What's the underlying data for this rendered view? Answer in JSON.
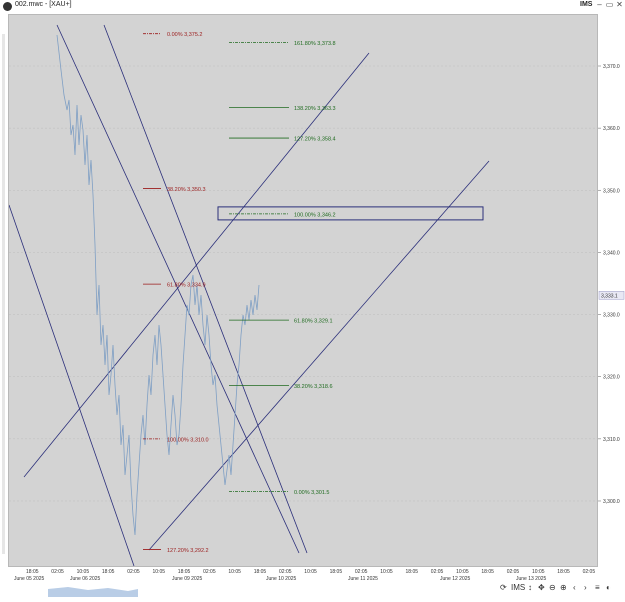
{
  "window": {
    "title": "002.mwc - [XAU+]",
    "brand": "IMS",
    "minimize": "–",
    "restore": "▭",
    "close": "✕"
  },
  "price_axis": {
    "labels": [
      "3,370.0",
      "3,360.0",
      "3,350.0",
      "3,340.0",
      "3,330.0",
      "3,320.0",
      "3,310.0",
      "3,300.0"
    ],
    "values": [
      3370,
      3360,
      3350,
      3340,
      3330,
      3320,
      3310,
      3300
    ],
    "current_price": "3,333.1"
  },
  "time_axis": {
    "top_labels": [
      "18:05",
      "02:05",
      "10:05",
      "18:05",
      "02:05",
      "10:05",
      "18:05",
      "02:05",
      "10:05",
      "18:05",
      "02:05",
      "10:05",
      "18:05",
      "02:05",
      "10:05",
      "18:05",
      "02:05",
      "10:05",
      "18:05",
      "02:05",
      "10:05",
      "18:05",
      "02:05"
    ],
    "date_labels": [
      "June 05 2025",
      "June 06 2025",
      "June 09 2025",
      "June 10 2025",
      "June 11 2025",
      "June 12 2025",
      "June 13 2025"
    ]
  },
  "fib_red": [
    {
      "label": "0.00% 3,375.2",
      "price": 3375.2
    },
    {
      "label": "38.20% 3,350.3",
      "price": 3350.3
    },
    {
      "label": "61.80% 3,334.9",
      "price": 3334.9
    },
    {
      "label": "100.00% 3,310.0",
      "price": 3310.0
    },
    {
      "label": "127.20% 3,292.2",
      "price": 3292.2
    }
  ],
  "fib_green": [
    {
      "label": "161.80% 3,373.8",
      "price": 3373.8
    },
    {
      "label": "138.20% 3,363.3",
      "price": 3363.3
    },
    {
      "label": "127.20% 3,358.4",
      "price": 3358.4
    },
    {
      "label": "100.00% 3,346.2",
      "price": 3346.2
    },
    {
      "label": "61.80% 3,329.1",
      "price": 3329.1
    },
    {
      "label": "38.20% 3,318.6",
      "price": 3318.6
    },
    {
      "label": "0.00% 3,301.5",
      "price": 3301.5
    }
  ],
  "colors": {
    "chart_bg": "#d3d3d3",
    "price_line": "#7f9fc4",
    "trend_line": "#2b2f7a",
    "fib_red": "#9b1b1b",
    "fib_green": "#1f6b1f",
    "price_tag_bg": "#e8e8f4"
  },
  "toolbar": {
    "icons": [
      "refresh-icon",
      "settings-icon",
      "vertical-resize-icon",
      "move-icon",
      "zoom-out-icon",
      "zoom-in-icon",
      "prev-icon",
      "next-icon",
      "menu-icon",
      "palette-icon"
    ],
    "ims_label": "IMS"
  }
}
